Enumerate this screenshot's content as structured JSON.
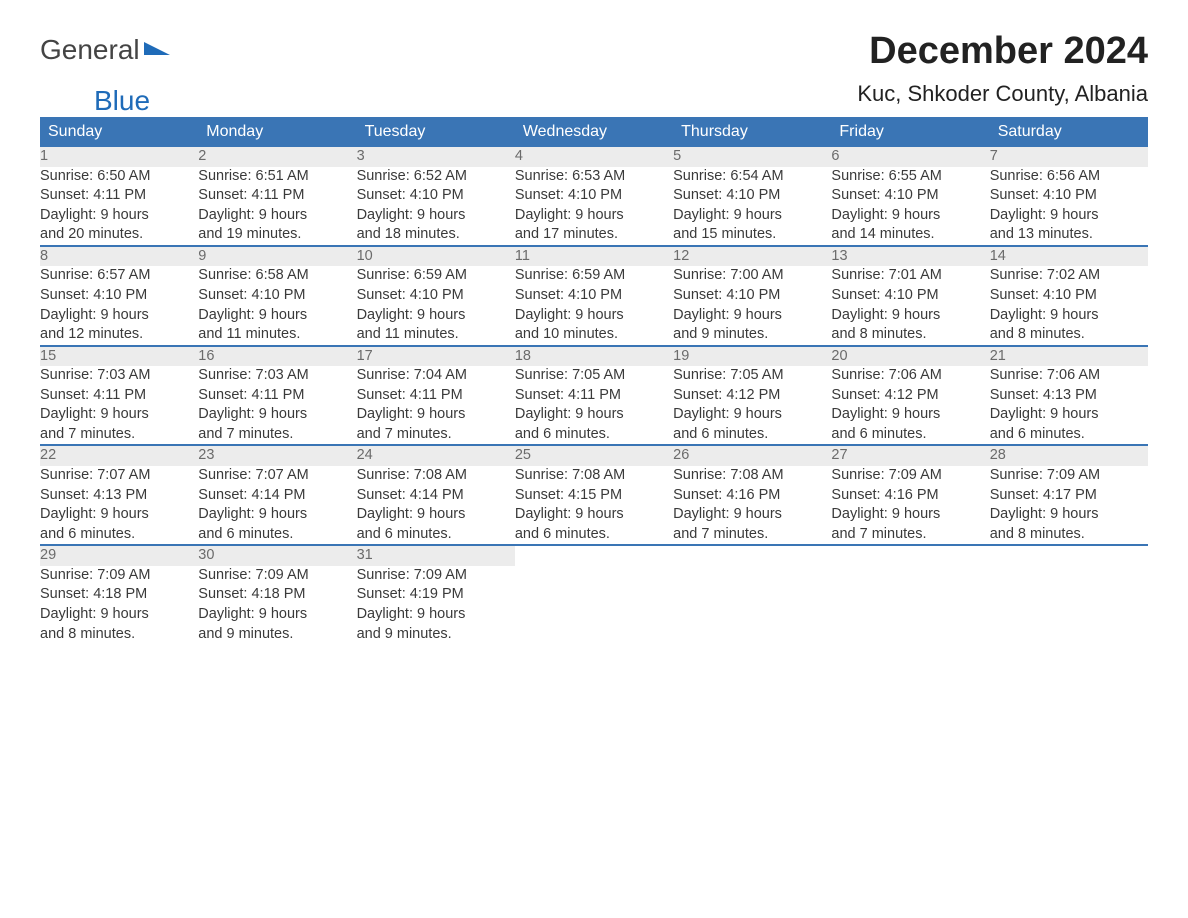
{
  "brand": {
    "word1": "General",
    "word2": "Blue"
  },
  "title": "December 2024",
  "location": "Kuc, Shkoder County, Albania",
  "colors": {
    "header_bg": "#3a75b5",
    "header_text": "#ffffff",
    "daynum_bg": "#ececec",
    "daynum_text": "#6b6b6b",
    "body_text": "#3a3a3a",
    "accent": "#3a75b5"
  },
  "day_headers": [
    "Sunday",
    "Monday",
    "Tuesday",
    "Wednesday",
    "Thursday",
    "Friday",
    "Saturday"
  ],
  "weeks": [
    [
      {
        "num": "1",
        "sunrise": "Sunrise: 6:50 AM",
        "sunset": "Sunset: 4:11 PM",
        "d1": "Daylight: 9 hours",
        "d2": "and 20 minutes."
      },
      {
        "num": "2",
        "sunrise": "Sunrise: 6:51 AM",
        "sunset": "Sunset: 4:11 PM",
        "d1": "Daylight: 9 hours",
        "d2": "and 19 minutes."
      },
      {
        "num": "3",
        "sunrise": "Sunrise: 6:52 AM",
        "sunset": "Sunset: 4:10 PM",
        "d1": "Daylight: 9 hours",
        "d2": "and 18 minutes."
      },
      {
        "num": "4",
        "sunrise": "Sunrise: 6:53 AM",
        "sunset": "Sunset: 4:10 PM",
        "d1": "Daylight: 9 hours",
        "d2": "and 17 minutes."
      },
      {
        "num": "5",
        "sunrise": "Sunrise: 6:54 AM",
        "sunset": "Sunset: 4:10 PM",
        "d1": "Daylight: 9 hours",
        "d2": "and 15 minutes."
      },
      {
        "num": "6",
        "sunrise": "Sunrise: 6:55 AM",
        "sunset": "Sunset: 4:10 PM",
        "d1": "Daylight: 9 hours",
        "d2": "and 14 minutes."
      },
      {
        "num": "7",
        "sunrise": "Sunrise: 6:56 AM",
        "sunset": "Sunset: 4:10 PM",
        "d1": "Daylight: 9 hours",
        "d2": "and 13 minutes."
      }
    ],
    [
      {
        "num": "8",
        "sunrise": "Sunrise: 6:57 AM",
        "sunset": "Sunset: 4:10 PM",
        "d1": "Daylight: 9 hours",
        "d2": "and 12 minutes."
      },
      {
        "num": "9",
        "sunrise": "Sunrise: 6:58 AM",
        "sunset": "Sunset: 4:10 PM",
        "d1": "Daylight: 9 hours",
        "d2": "and 11 minutes."
      },
      {
        "num": "10",
        "sunrise": "Sunrise: 6:59 AM",
        "sunset": "Sunset: 4:10 PM",
        "d1": "Daylight: 9 hours",
        "d2": "and 11 minutes."
      },
      {
        "num": "11",
        "sunrise": "Sunrise: 6:59 AM",
        "sunset": "Sunset: 4:10 PM",
        "d1": "Daylight: 9 hours",
        "d2": "and 10 minutes."
      },
      {
        "num": "12",
        "sunrise": "Sunrise: 7:00 AM",
        "sunset": "Sunset: 4:10 PM",
        "d1": "Daylight: 9 hours",
        "d2": "and 9 minutes."
      },
      {
        "num": "13",
        "sunrise": "Sunrise: 7:01 AM",
        "sunset": "Sunset: 4:10 PM",
        "d1": "Daylight: 9 hours",
        "d2": "and 8 minutes."
      },
      {
        "num": "14",
        "sunrise": "Sunrise: 7:02 AM",
        "sunset": "Sunset: 4:10 PM",
        "d1": "Daylight: 9 hours",
        "d2": "and 8 minutes."
      }
    ],
    [
      {
        "num": "15",
        "sunrise": "Sunrise: 7:03 AM",
        "sunset": "Sunset: 4:11 PM",
        "d1": "Daylight: 9 hours",
        "d2": "and 7 minutes."
      },
      {
        "num": "16",
        "sunrise": "Sunrise: 7:03 AM",
        "sunset": "Sunset: 4:11 PM",
        "d1": "Daylight: 9 hours",
        "d2": "and 7 minutes."
      },
      {
        "num": "17",
        "sunrise": "Sunrise: 7:04 AM",
        "sunset": "Sunset: 4:11 PM",
        "d1": "Daylight: 9 hours",
        "d2": "and 7 minutes."
      },
      {
        "num": "18",
        "sunrise": "Sunrise: 7:05 AM",
        "sunset": "Sunset: 4:11 PM",
        "d1": "Daylight: 9 hours",
        "d2": "and 6 minutes."
      },
      {
        "num": "19",
        "sunrise": "Sunrise: 7:05 AM",
        "sunset": "Sunset: 4:12 PM",
        "d1": "Daylight: 9 hours",
        "d2": "and 6 minutes."
      },
      {
        "num": "20",
        "sunrise": "Sunrise: 7:06 AM",
        "sunset": "Sunset: 4:12 PM",
        "d1": "Daylight: 9 hours",
        "d2": "and 6 minutes."
      },
      {
        "num": "21",
        "sunrise": "Sunrise: 7:06 AM",
        "sunset": "Sunset: 4:13 PM",
        "d1": "Daylight: 9 hours",
        "d2": "and 6 minutes."
      }
    ],
    [
      {
        "num": "22",
        "sunrise": "Sunrise: 7:07 AM",
        "sunset": "Sunset: 4:13 PM",
        "d1": "Daylight: 9 hours",
        "d2": "and 6 minutes."
      },
      {
        "num": "23",
        "sunrise": "Sunrise: 7:07 AM",
        "sunset": "Sunset: 4:14 PM",
        "d1": "Daylight: 9 hours",
        "d2": "and 6 minutes."
      },
      {
        "num": "24",
        "sunrise": "Sunrise: 7:08 AM",
        "sunset": "Sunset: 4:14 PM",
        "d1": "Daylight: 9 hours",
        "d2": "and 6 minutes."
      },
      {
        "num": "25",
        "sunrise": "Sunrise: 7:08 AM",
        "sunset": "Sunset: 4:15 PM",
        "d1": "Daylight: 9 hours",
        "d2": "and 6 minutes."
      },
      {
        "num": "26",
        "sunrise": "Sunrise: 7:08 AM",
        "sunset": "Sunset: 4:16 PM",
        "d1": "Daylight: 9 hours",
        "d2": "and 7 minutes."
      },
      {
        "num": "27",
        "sunrise": "Sunrise: 7:09 AM",
        "sunset": "Sunset: 4:16 PM",
        "d1": "Daylight: 9 hours",
        "d2": "and 7 minutes."
      },
      {
        "num": "28",
        "sunrise": "Sunrise: 7:09 AM",
        "sunset": "Sunset: 4:17 PM",
        "d1": "Daylight: 9 hours",
        "d2": "and 8 minutes."
      }
    ],
    [
      {
        "num": "29",
        "sunrise": "Sunrise: 7:09 AM",
        "sunset": "Sunset: 4:18 PM",
        "d1": "Daylight: 9 hours",
        "d2": "and 8 minutes."
      },
      {
        "num": "30",
        "sunrise": "Sunrise: 7:09 AM",
        "sunset": "Sunset: 4:18 PM",
        "d1": "Daylight: 9 hours",
        "d2": "and 9 minutes."
      },
      {
        "num": "31",
        "sunrise": "Sunrise: 7:09 AM",
        "sunset": "Sunset: 4:19 PM",
        "d1": "Daylight: 9 hours",
        "d2": "and 9 minutes."
      },
      null,
      null,
      null,
      null
    ]
  ]
}
